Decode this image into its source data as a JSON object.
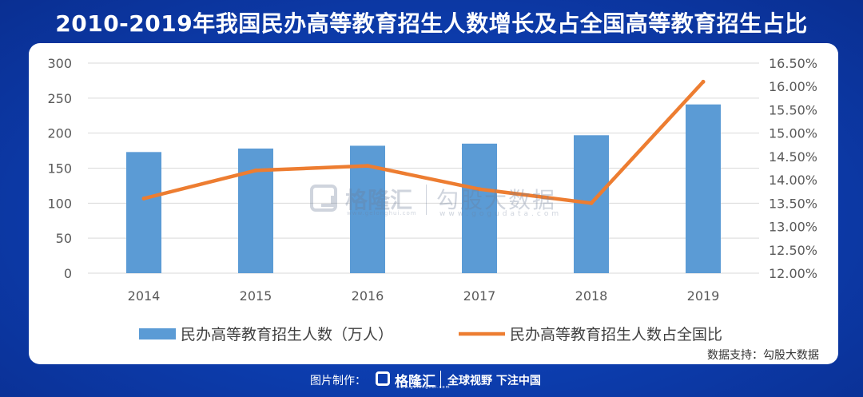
{
  "title": "2010-2019年我国民办高等教育招生人数增长及占全国高等教育招生占比",
  "source": "数据支持：勾股大数据",
  "watermark": {
    "brand": "格隆汇",
    "brand_url": "www.gelonghui.com",
    "name": "勾股大数据",
    "url": "www.gogudata.com"
  },
  "footer": {
    "made_by": "图片制作：",
    "brand": "格隆汇",
    "brand_url": "www.gelonghui.com",
    "slogan": "全球视野 下注中国"
  },
  "colors": {
    "bar": "#5b9bd5",
    "line": "#ed7d31",
    "background": "#0d3fb2"
  },
  "chart_data": {
    "type": "bar",
    "categories": [
      "2014",
      "2015",
      "2016",
      "2017",
      "2018",
      "2019"
    ],
    "series": [
      {
        "name": "民办高等教育招生人数（万人）",
        "type": "bar",
        "axis": "left",
        "values": [
          173,
          178,
          182,
          185,
          197,
          241
        ]
      },
      {
        "name": "民办高等教育招生人数占全国比",
        "type": "line",
        "axis": "right",
        "values": [
          13.6,
          14.2,
          14.3,
          13.8,
          13.5,
          16.1
        ]
      }
    ],
    "y_left": {
      "min": 0,
      "max": 300,
      "ticks": [
        "0",
        "50",
        "100",
        "150",
        "200",
        "250",
        "300"
      ]
    },
    "y_right": {
      "min": 12,
      "max": 16.5,
      "ticks": [
        "12.00%",
        "12.50%",
        "13.00%",
        "13.50%",
        "14.00%",
        "14.50%",
        "15.00%",
        "15.50%",
        "16.00%",
        "16.50%"
      ]
    },
    "grid": true,
    "legend": "bottom"
  }
}
